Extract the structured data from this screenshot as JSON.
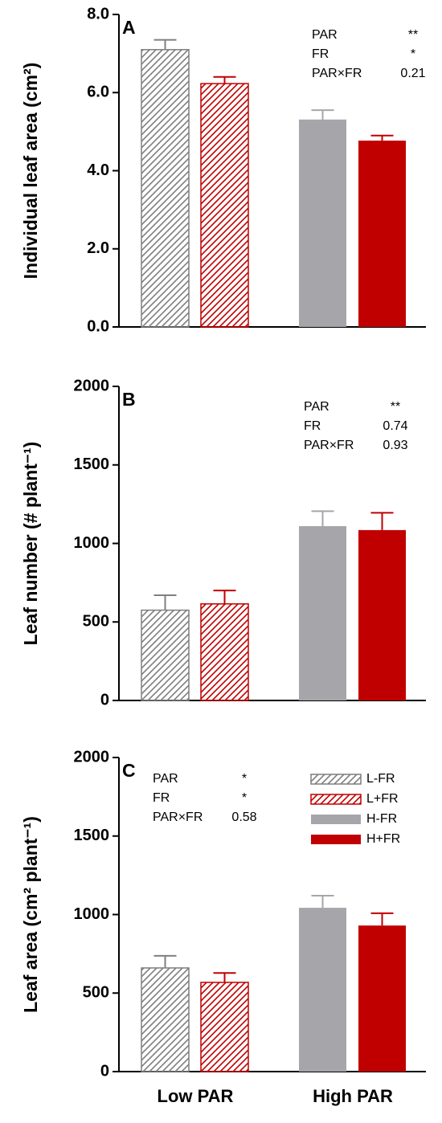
{
  "chart_data": [
    {
      "type": "bar",
      "letter": "A",
      "y_label": "Individual leaf area (cm²)",
      "ylim": [
        0,
        8
      ],
      "yticks": [
        {
          "value": 0,
          "label": "0.0"
        },
        {
          "value": 2,
          "label": "2.0"
        },
        {
          "value": 4,
          "label": "4.0"
        },
        {
          "value": 6,
          "label": "6.0"
        },
        {
          "value": 8,
          "label": "8.0"
        }
      ],
      "series": [
        {
          "color": "#7f7f7f",
          "pattern": "hatch",
          "values": [
            7.1,
            null
          ],
          "errors": [
            0.25,
            null
          ]
        },
        {
          "color": "#c00000",
          "pattern": "hatch",
          "values": [
            6.23,
            null
          ],
          "errors": [
            0.17,
            null
          ]
        },
        {
          "color": "#a6a6aa",
          "pattern": "solid",
          "values": [
            null,
            5.31
          ],
          "errors": [
            null,
            0.24
          ]
        },
        {
          "color": "#c00000",
          "pattern": "solid",
          "values": [
            null,
            4.77
          ],
          "errors": [
            null,
            0.13
          ]
        }
      ],
      "stats": [
        {
          "term": "PAR",
          "value": "**"
        },
        {
          "term": "FR",
          "value": "*"
        },
        {
          "term": "PAR×FR",
          "value": "0.21"
        }
      ]
    },
    {
      "type": "bar",
      "letter": "B",
      "y_label": "Leaf number (# plant⁻¹)",
      "ylim": [
        0,
        2000
      ],
      "yticks": [
        0,
        500,
        1000,
        1500,
        2000
      ],
      "series": [
        {
          "color": "#7f7f7f",
          "pattern": "hatch",
          "values": [
            575,
            null
          ],
          "errors": [
            95,
            null
          ]
        },
        {
          "color": "#c00000",
          "pattern": "hatch",
          "values": [
            615,
            null
          ],
          "errors": [
            85,
            null
          ]
        },
        {
          "color": "#a6a6aa",
          "pattern": "solid",
          "values": [
            null,
            1110
          ],
          "errors": [
            null,
            95
          ]
        },
        {
          "color": "#c00000",
          "pattern": "solid",
          "values": [
            null,
            1085
          ],
          "errors": [
            null,
            110
          ]
        }
      ],
      "stats": [
        {
          "term": "PAR",
          "value": "**"
        },
        {
          "term": "FR",
          "value": "0.74"
        },
        {
          "term": "PAR×FR",
          "value": "0.93"
        }
      ]
    },
    {
      "type": "bar",
      "letter": "C",
      "y_label": "Leaf area (cm² plant⁻¹)",
      "categories": [
        "Low PAR",
        "High PAR"
      ],
      "ylim": [
        0,
        2000
      ],
      "yticks": [
        0,
        500,
        1000,
        1500,
        2000
      ],
      "series": [
        {
          "name": "L-FR",
          "color": "#7f7f7f",
          "pattern": "hatch",
          "values": [
            660,
            null
          ],
          "errors": [
            77,
            null
          ]
        },
        {
          "name": "L+FR",
          "color": "#c00000",
          "pattern": "hatch",
          "values": [
            568,
            null
          ],
          "errors": [
            60,
            null
          ]
        },
        {
          "name": "H-FR",
          "color": "#a6a6aa",
          "pattern": "solid",
          "values": [
            null,
            1043
          ],
          "errors": [
            null,
            77
          ]
        },
        {
          "name": "H+FR",
          "color": "#c00000",
          "pattern": "solid",
          "values": [
            null,
            930
          ],
          "errors": [
            null,
            78
          ]
        }
      ],
      "stats": [
        {
          "term": "PAR",
          "value": "*"
        },
        {
          "term": "FR",
          "value": "*"
        },
        {
          "term": "PAR×FR",
          "value": "0.58"
        }
      ]
    }
  ]
}
